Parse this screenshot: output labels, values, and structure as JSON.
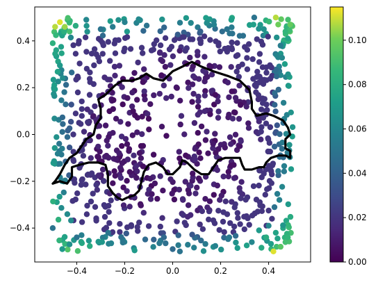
{
  "chart_data": {
    "type": "scatter",
    "title": "",
    "xlabel": "",
    "ylabel": "",
    "xlim": [
      -0.575,
      0.575
    ],
    "ylim": [
      -0.545,
      0.545
    ],
    "grid": false,
    "x_ticks": [
      -0.4,
      -0.2,
      0.0,
      0.2,
      0.4
    ],
    "x_tick_labels": [
      "−0.4",
      "−0.2",
      "0.0",
      "0.2",
      "0.4"
    ],
    "y_ticks": [
      -0.4,
      -0.2,
      0.0,
      0.2,
      0.4
    ],
    "y_tick_labels": [
      "−0.4",
      "−0.2",
      "0.0",
      "0.2",
      "0.4"
    ],
    "colormap": "viridis",
    "color_range": [
      0.0,
      0.115
    ],
    "colorbar_ticks": [
      0.0,
      0.02,
      0.04,
      0.06,
      0.08,
      0.1
    ],
    "colorbar_tick_labels": [
      "0.00",
      "0.02",
      "0.04",
      "0.06",
      "0.08",
      "0.10"
    ],
    "contour_color": "#000000",
    "points": [
      {
        "x": -0.49,
        "y": 0.46,
        "c": 0.108
      },
      {
        "x": -0.47,
        "y": 0.48,
        "c": 0.112
      },
      {
        "x": -0.45,
        "y": 0.46,
        "c": 0.105
      },
      {
        "x": -0.5,
        "y": 0.39,
        "c": 0.082
      },
      {
        "x": -0.43,
        "y": 0.44,
        "c": 0.09
      },
      {
        "x": -0.36,
        "y": 0.49,
        "c": 0.06
      },
      {
        "x": -0.3,
        "y": 0.45,
        "c": 0.05
      },
      {
        "x": -0.25,
        "y": 0.46,
        "c": 0.055
      },
      {
        "x": -0.2,
        "y": 0.48,
        "c": 0.057
      },
      {
        "x": -0.19,
        "y": 0.44,
        "c": 0.07
      },
      {
        "x": 0.43,
        "y": 0.5,
        "c": 0.108
      },
      {
        "x": 0.44,
        "y": 0.47,
        "c": 0.1
      },
      {
        "x": 0.47,
        "y": 0.44,
        "c": 0.085
      },
      {
        "x": 0.49,
        "y": 0.47,
        "c": 0.098
      },
      {
        "x": 0.48,
        "y": 0.41,
        "c": 0.075
      },
      {
        "x": 0.38,
        "y": 0.45,
        "c": 0.065
      },
      {
        "x": 0.34,
        "y": 0.5,
        "c": 0.05
      },
      {
        "x": 0.45,
        "y": 0.38,
        "c": 0.055
      },
      {
        "x": -0.43,
        "y": -0.47,
        "c": 0.065
      },
      {
        "x": -0.46,
        "y": -0.49,
        "c": 0.07
      },
      {
        "x": -0.5,
        "y": -0.4,
        "c": 0.05
      },
      {
        "x": -0.4,
        "y": -0.44,
        "c": 0.05
      },
      {
        "x": 0.42,
        "y": -0.5,
        "c": 0.112
      },
      {
        "x": 0.45,
        "y": -0.48,
        "c": 0.095
      },
      {
        "x": 0.47,
        "y": -0.46,
        "c": 0.09
      },
      {
        "x": 0.39,
        "y": -0.44,
        "c": 0.08
      },
      {
        "x": 0.43,
        "y": -0.42,
        "c": 0.075
      },
      {
        "x": 0.48,
        "y": -0.44,
        "c": 0.085
      },
      {
        "x": 0.36,
        "y": -0.41,
        "c": 0.07
      },
      {
        "x": 0.4,
        "y": -0.39,
        "c": 0.06
      },
      {
        "x": 0.33,
        "y": -0.46,
        "c": 0.06
      },
      {
        "x": 0.0,
        "y": -0.49,
        "c": 0.045
      },
      {
        "x": 0.03,
        "y": -0.5,
        "c": 0.05
      }
    ],
    "contour": [
      [
        -0.5,
        -0.21
      ],
      [
        -0.47,
        -0.2
      ],
      [
        -0.44,
        -0.21
      ],
      [
        -0.42,
        -0.18
      ],
      [
        -0.42,
        -0.14
      ],
      [
        -0.39,
        -0.13
      ],
      [
        -0.35,
        -0.12
      ],
      [
        -0.31,
        -0.12
      ],
      [
        -0.28,
        -0.13
      ],
      [
        -0.27,
        -0.17
      ],
      [
        -0.27,
        -0.22
      ],
      [
        -0.25,
        -0.25
      ],
      [
        -0.23,
        -0.27
      ],
      [
        -0.21,
        -0.28
      ],
      [
        -0.19,
        -0.27
      ],
      [
        -0.16,
        -0.26
      ],
      [
        -0.14,
        -0.24
      ],
      [
        -0.13,
        -0.2
      ],
      [
        -0.12,
        -0.16
      ],
      [
        -0.1,
        -0.13
      ],
      [
        -0.07,
        -0.12
      ],
      [
        -0.04,
        -0.14
      ],
      [
        -0.02,
        -0.17
      ],
      [
        0.0,
        -0.17
      ],
      [
        0.03,
        -0.14
      ],
      [
        0.04,
        -0.11
      ],
      [
        0.06,
        -0.12
      ],
      [
        0.09,
        -0.15
      ],
      [
        0.12,
        -0.17
      ],
      [
        0.15,
        -0.17
      ],
      [
        0.17,
        -0.14
      ],
      [
        0.19,
        -0.11
      ],
      [
        0.22,
        -0.1
      ],
      [
        0.25,
        -0.1
      ],
      [
        0.28,
        -0.1
      ],
      [
        0.29,
        -0.13
      ],
      [
        0.3,
        -0.15
      ],
      [
        0.33,
        -0.15
      ],
      [
        0.36,
        -0.14
      ],
      [
        0.38,
        -0.14
      ],
      [
        0.39,
        -0.12
      ],
      [
        0.41,
        -0.1
      ],
      [
        0.44,
        -0.09
      ],
      [
        0.47,
        -0.09
      ],
      [
        0.49,
        -0.1
      ],
      [
        0.49,
        -0.07
      ],
      [
        0.47,
        -0.06
      ],
      [
        0.47,
        -0.02
      ],
      [
        0.49,
        0.0
      ],
      [
        0.48,
        0.03
      ],
      [
        0.46,
        0.06
      ],
      [
        0.42,
        0.08
      ],
      [
        0.39,
        0.09
      ],
      [
        0.35,
        0.08
      ],
      [
        0.33,
        0.11
      ],
      [
        0.33,
        0.14
      ],
      [
        0.32,
        0.19
      ],
      [
        0.28,
        0.23
      ],
      [
        0.23,
        0.25
      ],
      [
        0.17,
        0.27
      ],
      [
        0.12,
        0.29
      ],
      [
        0.08,
        0.31
      ],
      [
        0.04,
        0.29
      ],
      [
        0.0,
        0.27
      ],
      [
        -0.02,
        0.25
      ],
      [
        -0.04,
        0.23
      ],
      [
        -0.08,
        0.24
      ],
      [
        -0.11,
        0.26
      ],
      [
        -0.14,
        0.24
      ],
      [
        -0.17,
        0.23
      ],
      [
        -0.21,
        0.23
      ],
      [
        -0.24,
        0.21
      ],
      [
        -0.26,
        0.19
      ],
      [
        -0.28,
        0.17
      ],
      [
        -0.31,
        0.15
      ],
      [
        -0.3,
        0.11
      ],
      [
        -0.3,
        0.07
      ],
      [
        -0.32,
        0.04
      ],
      [
        -0.33,
        0.0
      ],
      [
        -0.36,
        -0.02
      ],
      [
        -0.38,
        -0.05
      ],
      [
        -0.4,
        -0.08
      ],
      [
        -0.43,
        -0.1
      ],
      [
        -0.45,
        -0.13
      ],
      [
        -0.47,
        -0.17
      ],
      [
        -0.49,
        -0.2
      ],
      [
        -0.5,
        -0.21
      ]
    ]
  }
}
